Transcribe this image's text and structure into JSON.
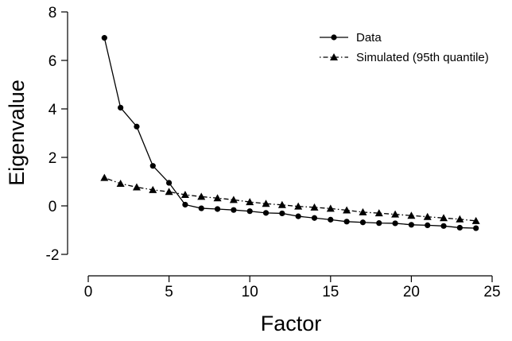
{
  "chart_data": {
    "type": "line",
    "title": "",
    "xlabel": "Factor",
    "ylabel": "Eigenvalue",
    "xlim": [
      0,
      25
    ],
    "ylim": [
      -2,
      8
    ],
    "xticks": [
      0,
      5,
      10,
      15,
      20,
      25
    ],
    "yticks": [
      -2,
      0,
      2,
      4,
      6,
      8
    ],
    "x": [
      1,
      2,
      3,
      4,
      5,
      6,
      7,
      8,
      9,
      10,
      11,
      12,
      13,
      14,
      15,
      16,
      17,
      18,
      19,
      20,
      21,
      22,
      23,
      24
    ],
    "series": [
      {
        "name": "Data",
        "marker": "circle",
        "line": "solid",
        "values": [
          6.93,
          4.05,
          3.27,
          1.65,
          0.95,
          0.05,
          -0.1,
          -0.13,
          -0.17,
          -0.22,
          -0.29,
          -0.31,
          -0.43,
          -0.5,
          -0.57,
          -0.65,
          -0.68,
          -0.71,
          -0.72,
          -0.78,
          -0.8,
          -0.83,
          -0.9,
          -0.92
        ]
      },
      {
        "name": "Simulated (95th quantile)",
        "marker": "triangle",
        "line": "dotdash",
        "values": [
          1.16,
          0.92,
          0.77,
          0.66,
          0.58,
          0.46,
          0.38,
          0.32,
          0.25,
          0.16,
          0.09,
          0.04,
          -0.02,
          -0.06,
          -0.11,
          -0.18,
          -0.26,
          -0.3,
          -0.35,
          -0.4,
          -0.45,
          -0.5,
          -0.55,
          -0.62
        ]
      }
    ],
    "legend_position": "top-right",
    "grid": false
  }
}
